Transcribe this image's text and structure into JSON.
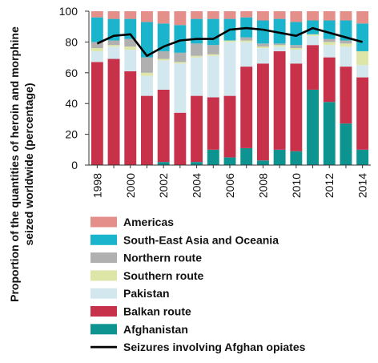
{
  "chart_data": {
    "type": "bar",
    "stacked": true,
    "ylabel": "Proportion of the quantities of heroin and morphine seized worldwide (percentage)",
    "xlabel": "",
    "ylim": [
      0,
      100
    ],
    "yticks": [
      0,
      20,
      40,
      60,
      80,
      100
    ],
    "categories": [
      "1998",
      "1999",
      "2000",
      "2001",
      "2002",
      "2003",
      "2004",
      "2005",
      "2006",
      "2007",
      "2008",
      "2009",
      "2010",
      "2011",
      "2012",
      "2013",
      "2014"
    ],
    "x_tick_labels": [
      "1998",
      "2000",
      "2002",
      "2004",
      "2006",
      "2008",
      "2010",
      "2012",
      "2014"
    ],
    "grid": false,
    "legend_position": "bottom",
    "series": [
      {
        "name": "Afghanistan",
        "color": "#0e9490",
        "values": [
          0,
          0,
          0,
          0,
          2,
          0,
          2,
          10,
          5,
          11,
          3,
          10,
          9,
          49,
          41,
          27,
          10
        ]
      },
      {
        "name": "Balkan route",
        "color": "#c8314a",
        "values": [
          67,
          69,
          61,
          45,
          47,
          34,
          43,
          34,
          40,
          53,
          63,
          64,
          57,
          29,
          29,
          37,
          47
        ]
      },
      {
        "name": "Pakistan",
        "color": "#d3e8ee",
        "values": [
          7,
          8,
          14,
          13,
          19,
          32,
          25,
          27,
          35,
          16,
          10,
          3,
          9,
          6,
          8,
          13,
          8
        ]
      },
      {
        "name": "Southern route",
        "color": "#dde6a6",
        "values": [
          2,
          1,
          2,
          2,
          1,
          1,
          1,
          1,
          1,
          1,
          1,
          1,
          1,
          1,
          2,
          2,
          9
        ]
      },
      {
        "name": "Northern route",
        "color": "#b0b0b0",
        "values": [
          4,
          3,
          5,
          10,
          5,
          6,
          8,
          6,
          0,
          2,
          2,
          1,
          2,
          0,
          2,
          2,
          0
        ]
      },
      {
        "name": "South-East Asia and Oceania",
        "color": "#1ab4cc",
        "values": [
          16,
          14,
          13,
          23,
          18,
          18,
          16,
          17,
          14,
          13,
          15,
          16,
          15,
          9,
          12,
          13,
          18
        ]
      },
      {
        "name": "Americas",
        "color": "#e58f8a",
        "values": [
          4,
          5,
          5,
          7,
          8,
          9,
          5,
          5,
          5,
          4,
          6,
          5,
          7,
          6,
          6,
          6,
          8
        ]
      }
    ],
    "line_series": {
      "name": "Seizures involving Afghan opiates",
      "color": "#000000",
      "values": [
        79,
        84,
        85,
        71,
        77,
        81,
        82,
        82,
        88,
        89,
        88,
        86,
        84,
        89,
        86,
        83,
        80
      ]
    },
    "legend_entries": [
      "Americas",
      "South-East Asia and Oceania",
      "Northern route",
      "Southern route",
      "Pakistan",
      "Balkan route",
      "Afghanistan",
      "Seizures involving Afghan opiates"
    ]
  }
}
